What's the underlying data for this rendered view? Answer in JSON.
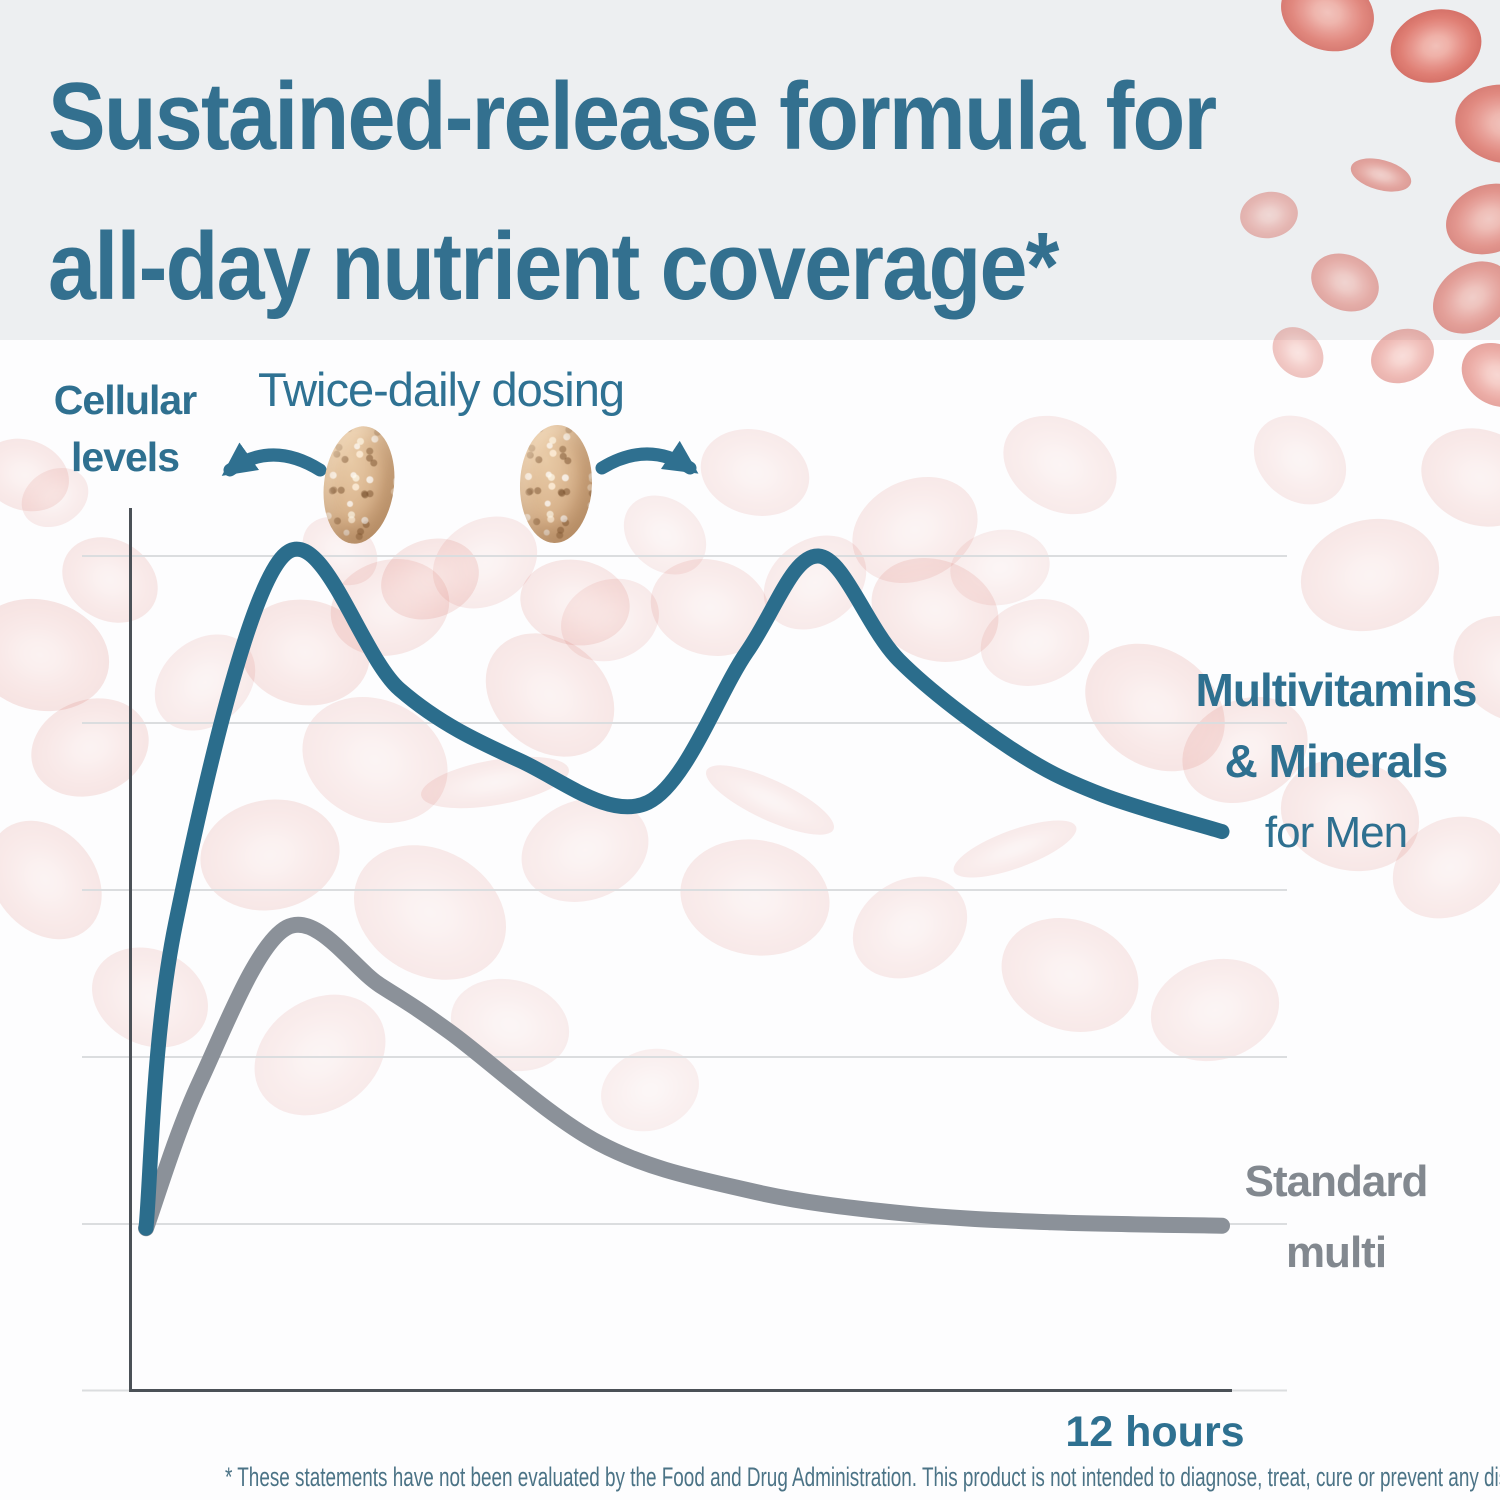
{
  "header": {
    "title_line1": "Sustained-release formula for",
    "title_line2": "all-day nutrient coverage*"
  },
  "chart": {
    "y_axis_label_line1": "Cellular",
    "y_axis_label_line2": "levels",
    "annotation": "Twice-daily dosing",
    "x_axis_label": "12 hours",
    "series1_label_line1": "Multivitamins",
    "series1_label_line2": "& Minerals",
    "series1_label_line3": "for Men",
    "series2_label_line1": "Standard",
    "series2_label_line2": "multi"
  },
  "chart_data": {
    "type": "line",
    "title": "Sustained-release formula for all-day nutrient coverage*",
    "xlabel": "12 hours",
    "ylabel": "Cellular levels",
    "x_unit": "hours",
    "x_range": [
      0,
      12
    ],
    "ylim": [
      0,
      105
    ],
    "grid": true,
    "gridlines_y_values": [
      20,
      40,
      60,
      80,
      100
    ],
    "legend_position": "right-inline",
    "annotations": [
      "Twice-daily dosing"
    ],
    "series": [
      {
        "name": "Multivitamins & Minerals for Men",
        "color": "#2b6d8c",
        "x": [
          0,
          0.33,
          1.53,
          2.83,
          4.17,
          5.6,
          6.7,
          7.5,
          8.4,
          9.64,
          10.64,
          12
        ],
        "y": [
          19.5,
          56,
          100,
          84,
          75.5,
          70.5,
          88.5,
          100,
          87.5,
          77,
          71.5,
          67
        ]
      },
      {
        "name": "Standard multi",
        "color": "#8b9199",
        "x": [
          0,
          0.6,
          1.57,
          2.61,
          3.39,
          5.05,
          6.73,
          8.41,
          10.1,
          12
        ],
        "y": [
          19.5,
          37,
          55.5,
          48.6,
          43,
          29.7,
          24,
          21.3,
          20.2,
          19.8
        ]
      }
    ]
  },
  "footer": {
    "disclaimer": "* These statements have not been evaluated by the Food and Drug Administration. This product is not intended to diagnose, treat, cure or prevent any disease."
  },
  "colors": {
    "accent_teal": "#2f7090",
    "curve_teal": "#2b6d8c",
    "curve_gray": "#8b9199",
    "label_gray": "#82888f",
    "axis": "#4b5157",
    "gridline": "#dbdddf",
    "header_band": "#edeff1",
    "red_blood_cell": "#e57a6e",
    "pill": "#d6af88"
  },
  "icons": {
    "pill_icon": "supplement-pill",
    "red_cell_icon": "red-blood-cell",
    "arrow_left_icon": "curved-arrow-left",
    "arrow_right_icon": "curved-arrow-right"
  }
}
